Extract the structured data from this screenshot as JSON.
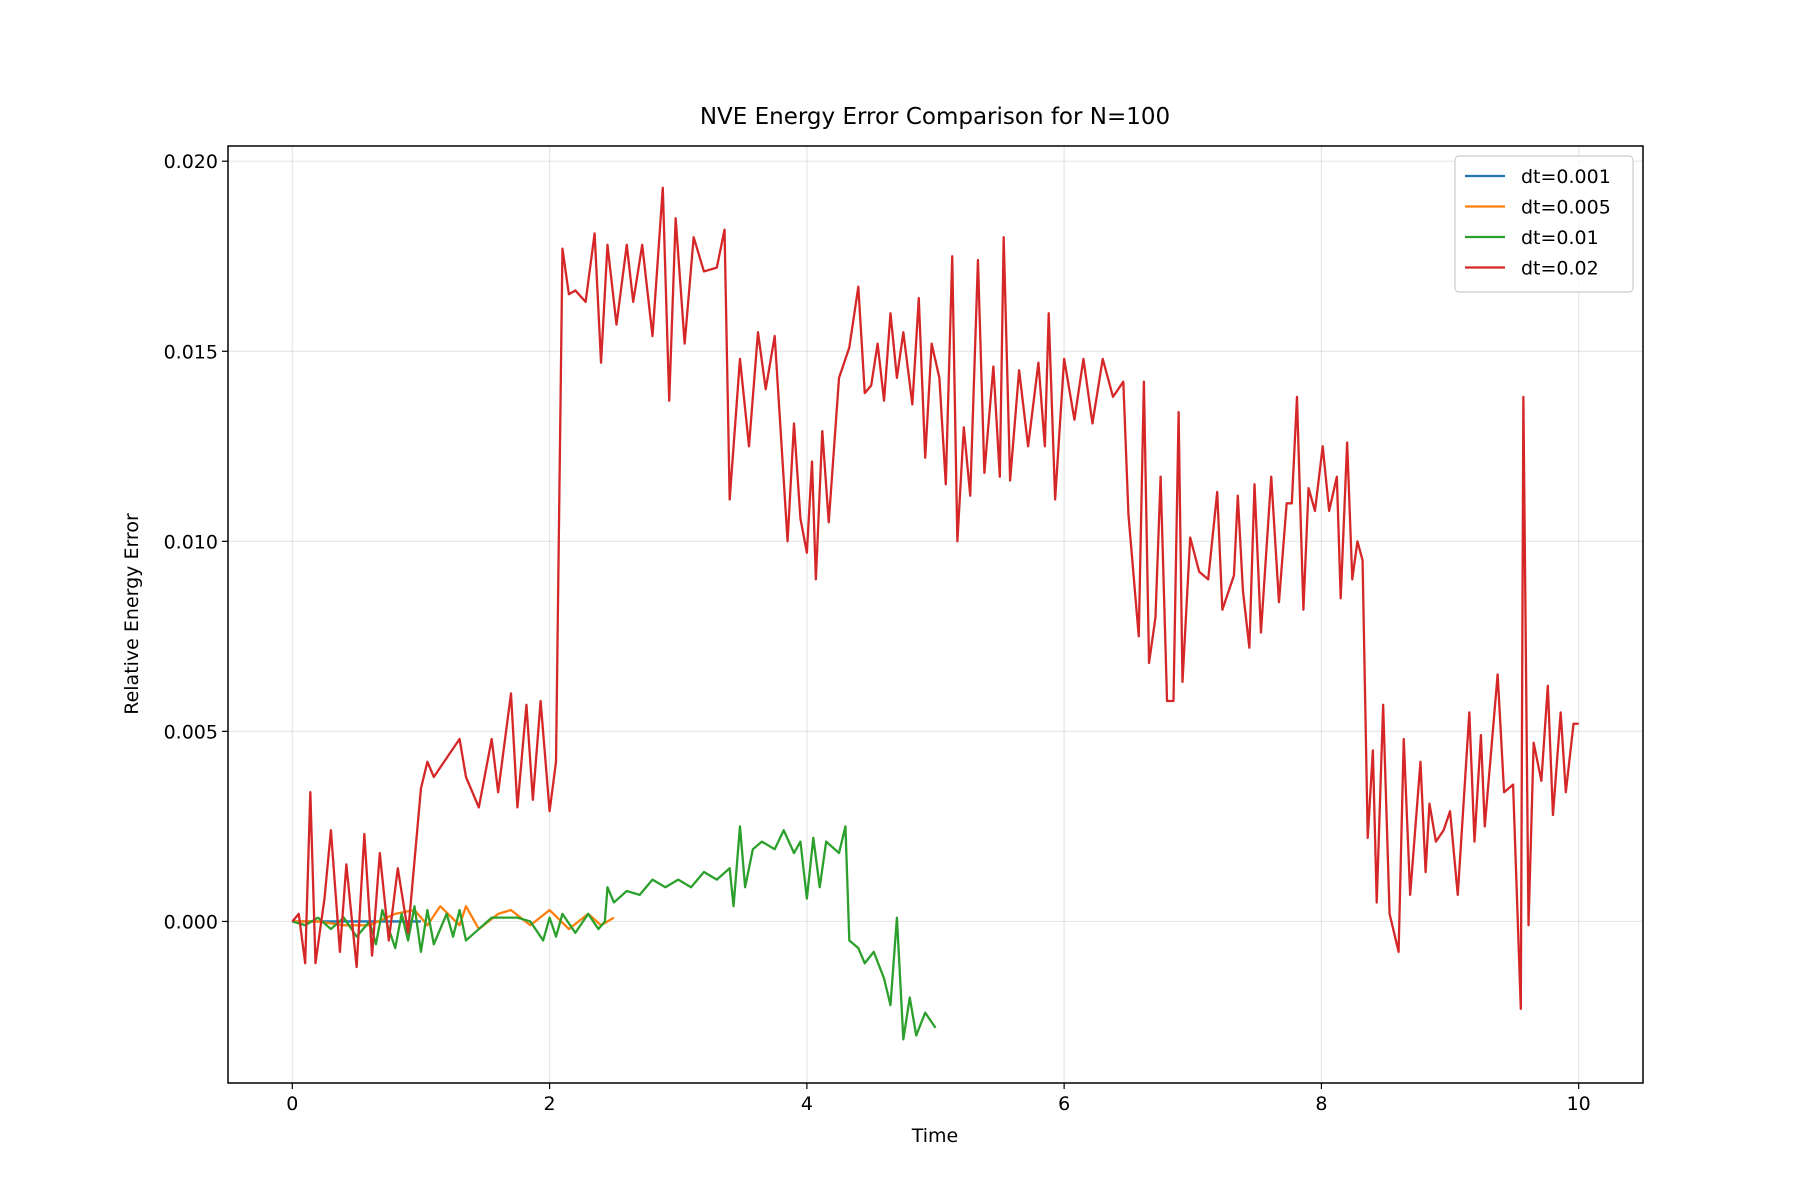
{
  "chart_data": {
    "type": "line",
    "title": "NVE Energy Error Comparison for N=100",
    "x_label": "Time",
    "y_label": "Relative Energy Error",
    "xlim": [
      -0.5,
      10.5
    ],
    "ylim": [
      -0.00425,
      0.0204
    ],
    "xticks": [
      0,
      2,
      4,
      6,
      8,
      10
    ],
    "yticks": [
      {
        "value": 0,
        "label": "0.000"
      },
      {
        "value": 0.005,
        "label": "0.005"
      },
      {
        "value": 0.01,
        "label": "0.010"
      },
      {
        "value": 0.015,
        "label": "0.015"
      },
      {
        "value": 0.02,
        "label": "0.020"
      }
    ],
    "grid": true,
    "legend": "upper right",
    "series": [
      {
        "name": "dt=0.001",
        "color": "#1f77b4",
        "x": [
          0,
          0.25,
          0.5,
          0.75,
          1.0
        ],
        "values": [
          0,
          0,
          0,
          0,
          0
        ]
      },
      {
        "name": "dt=0.005",
        "color": "#ff7f0e",
        "x": [
          0,
          0.2,
          0.4,
          0.6,
          0.8,
          0.95,
          1.05,
          1.15,
          1.3,
          1.35,
          1.45,
          1.6,
          1.7,
          1.85,
          2.0,
          2.15,
          2.3,
          2.4,
          2.5
        ],
        "values": [
          0,
          0,
          -0.0001,
          -0.0001,
          0.0002,
          0.0003,
          -0.0001,
          0.0004,
          -0.0001,
          0.0004,
          -0.0002,
          0.0002,
          0.0003,
          -0.0001,
          0.0003,
          -0.0002,
          0.0002,
          -0.0001,
          0.0001
        ]
      },
      {
        "name": "dt=0.01",
        "color": "#2ca02c",
        "x": [
          0,
          0.1,
          0.2,
          0.3,
          0.4,
          0.5,
          0.6,
          0.65,
          0.7,
          0.8,
          0.85,
          0.9,
          0.95,
          1.0,
          1.05,
          1.1,
          1.2,
          1.25,
          1.3,
          1.35,
          1.45,
          1.55,
          1.65,
          1.75,
          1.85,
          1.95,
          2.0,
          2.05,
          2.1,
          2.2,
          2.3,
          2.38,
          2.43,
          2.45,
          2.5,
          2.6,
          2.7,
          2.8,
          2.9,
          3.0,
          3.1,
          3.2,
          3.3,
          3.4,
          3.43,
          3.48,
          3.52,
          3.58,
          3.65,
          3.75,
          3.82,
          3.9,
          3.95,
          4.0,
          4.05,
          4.1,
          4.15,
          4.25,
          4.3,
          4.33,
          4.4,
          4.45,
          4.52,
          4.6,
          4.65,
          4.7,
          4.75,
          4.8,
          4.85,
          4.92,
          5.0
        ],
        "values": [
          0,
          -0.0001,
          0.0001,
          -0.0002,
          0.0001,
          -0.0004,
          0,
          -0.0006,
          0.0003,
          -0.0007,
          0.0002,
          -0.0005,
          0.0004,
          -0.0008,
          0.0003,
          -0.0006,
          0.0002,
          -0.0004,
          0.0003,
          -0.0005,
          -0.0002,
          0.0001,
          0.0001,
          0.0001,
          0,
          -0.0005,
          0.0001,
          -0.0004,
          0.0002,
          -0.0003,
          0.0002,
          -0.0002,
          0,
          0.0009,
          0.0005,
          0.0008,
          0.0007,
          0.0011,
          0.0009,
          0.0011,
          0.0009,
          0.0013,
          0.0011,
          0.0014,
          0.0004,
          0.0025,
          0.0009,
          0.0019,
          0.0021,
          0.0019,
          0.0024,
          0.0018,
          0.0021,
          0.0006,
          0.0022,
          0.0009,
          0.0021,
          0.0018,
          0.0025,
          -0.0005,
          -0.0007,
          -0.0011,
          -0.0008,
          -0.0015,
          -0.0022,
          0.0001,
          -0.0031,
          -0.002,
          -0.003,
          -0.0024,
          -0.0028
        ]
      },
      {
        "name": "dt=0.02",
        "color": "#d62728",
        "x": [
          0,
          0.05,
          0.1,
          0.14,
          0.18,
          0.25,
          0.3,
          0.37,
          0.42,
          0.5,
          0.56,
          0.62,
          0.68,
          0.75,
          0.82,
          0.9,
          1.0,
          1.05,
          1.1,
          1.2,
          1.3,
          1.35,
          1.45,
          1.55,
          1.6,
          1.7,
          1.75,
          1.82,
          1.87,
          1.93,
          2.0,
          2.05,
          2.1,
          2.15,
          2.2,
          2.28,
          2.35,
          2.4,
          2.45,
          2.52,
          2.6,
          2.65,
          2.72,
          2.8,
          2.88,
          2.93,
          2.98,
          3.05,
          3.12,
          3.2,
          3.3,
          3.36,
          3.4,
          3.48,
          3.55,
          3.62,
          3.68,
          3.75,
          3.85,
          3.9,
          3.95,
          4.0,
          4.04,
          4.07,
          4.12,
          4.17,
          4.25,
          4.33,
          4.4,
          4.45,
          4.5,
          4.55,
          4.6,
          4.65,
          4.7,
          4.75,
          4.82,
          4.87,
          4.92,
          4.97,
          5.03,
          5.08,
          5.13,
          5.17,
          5.22,
          5.27,
          5.33,
          5.38,
          5.45,
          5.5,
          5.53,
          5.58,
          5.65,
          5.72,
          5.8,
          5.85,
          5.88,
          5.93,
          6.0,
          6.08,
          6.15,
          6.22,
          6.3,
          6.38,
          6.46,
          6.5,
          6.58,
          6.62,
          6.66,
          6.71,
          6.75,
          6.8,
          6.85,
          6.89,
          6.92,
          6.98,
          7.05,
          7.12,
          7.19,
          7.23,
          7.32,
          7.35,
          7.39,
          7.44,
          7.48,
          7.53,
          7.61,
          7.67,
          7.73,
          7.77,
          7.81,
          7.86,
          7.9,
          7.95,
          8.01,
          8.06,
          8.12,
          8.15,
          8.2,
          8.24,
          8.28,
          8.32,
          8.36,
          8.4,
          8.43,
          8.48,
          8.53,
          8.6,
          8.64,
          8.69,
          8.77,
          8.81,
          8.84,
          8.89,
          8.95,
          9.0,
          9.06,
          9.15,
          9.19,
          9.24,
          9.27,
          9.31,
          9.37,
          9.42,
          9.49,
          9.55,
          9.57,
          9.61,
          9.65,
          9.71,
          9.76,
          9.8,
          9.86,
          9.9,
          9.96,
          10.0
        ],
        "values": [
          0,
          0.0002,
          -0.0011,
          0.0034,
          -0.0011,
          0.0006,
          0.0024,
          -0.0008,
          0.0015,
          -0.0012,
          0.0023,
          -0.0009,
          0.0018,
          -0.0005,
          0.0014,
          -0.0003,
          0.0035,
          0.0042,
          0.0038,
          0.0043,
          0.0048,
          0.0038,
          0.003,
          0.0048,
          0.0034,
          0.006,
          0.003,
          0.0057,
          0.0032,
          0.0058,
          0.0029,
          0.0042,
          0.0177,
          0.0165,
          0.0166,
          0.0163,
          0.0181,
          0.0147,
          0.0178,
          0.0157,
          0.0178,
          0.0163,
          0.0178,
          0.0154,
          0.0193,
          0.0137,
          0.0185,
          0.0152,
          0.018,
          0.0171,
          0.0172,
          0.0182,
          0.0111,
          0.0148,
          0.0125,
          0.0155,
          0.014,
          0.0154,
          0.01,
          0.0131,
          0.0106,
          0.0097,
          0.0121,
          0.009,
          0.0129,
          0.0105,
          0.0143,
          0.0151,
          0.0167,
          0.0139,
          0.0141,
          0.0152,
          0.0137,
          0.016,
          0.0143,
          0.0155,
          0.0136,
          0.0164,
          0.0122,
          0.0152,
          0.0143,
          0.0115,
          0.0175,
          0.01,
          0.013,
          0.0112,
          0.0174,
          0.0118,
          0.0146,
          0.0117,
          0.018,
          0.0116,
          0.0145,
          0.0125,
          0.0147,
          0.0125,
          0.016,
          0.0111,
          0.0148,
          0.0132,
          0.0148,
          0.0131,
          0.0148,
          0.0138,
          0.0142,
          0.0107,
          0.0075,
          0.0142,
          0.0068,
          0.008,
          0.0117,
          0.0058,
          0.0058,
          0.0134,
          0.0063,
          0.0101,
          0.0092,
          0.009,
          0.0113,
          0.0082,
          0.0091,
          0.0112,
          0.0087,
          0.0072,
          0.0115,
          0.0076,
          0.0117,
          0.0084,
          0.011,
          0.011,
          0.0138,
          0.0082,
          0.0114,
          0.0108,
          0.0125,
          0.0108,
          0.0117,
          0.0085,
          0.0126,
          0.009,
          0.01,
          0.0095,
          0.0022,
          0.0045,
          0.0005,
          0.0057,
          0.0002,
          -0.0008,
          0.0048,
          0.0007,
          0.0042,
          0.0013,
          0.0031,
          0.0021,
          0.0024,
          0.0029,
          0.0007,
          0.0055,
          0.0021,
          0.0049,
          0.0025,
          0.0041,
          0.0065,
          0.0034,
          0.0036,
          -0.0023,
          0.0138,
          -0.0001,
          0.0047,
          0.0037,
          0.0062,
          0.0028,
          0.0055,
          0.0034,
          0.0052,
          0.0052
        ]
      }
    ]
  }
}
